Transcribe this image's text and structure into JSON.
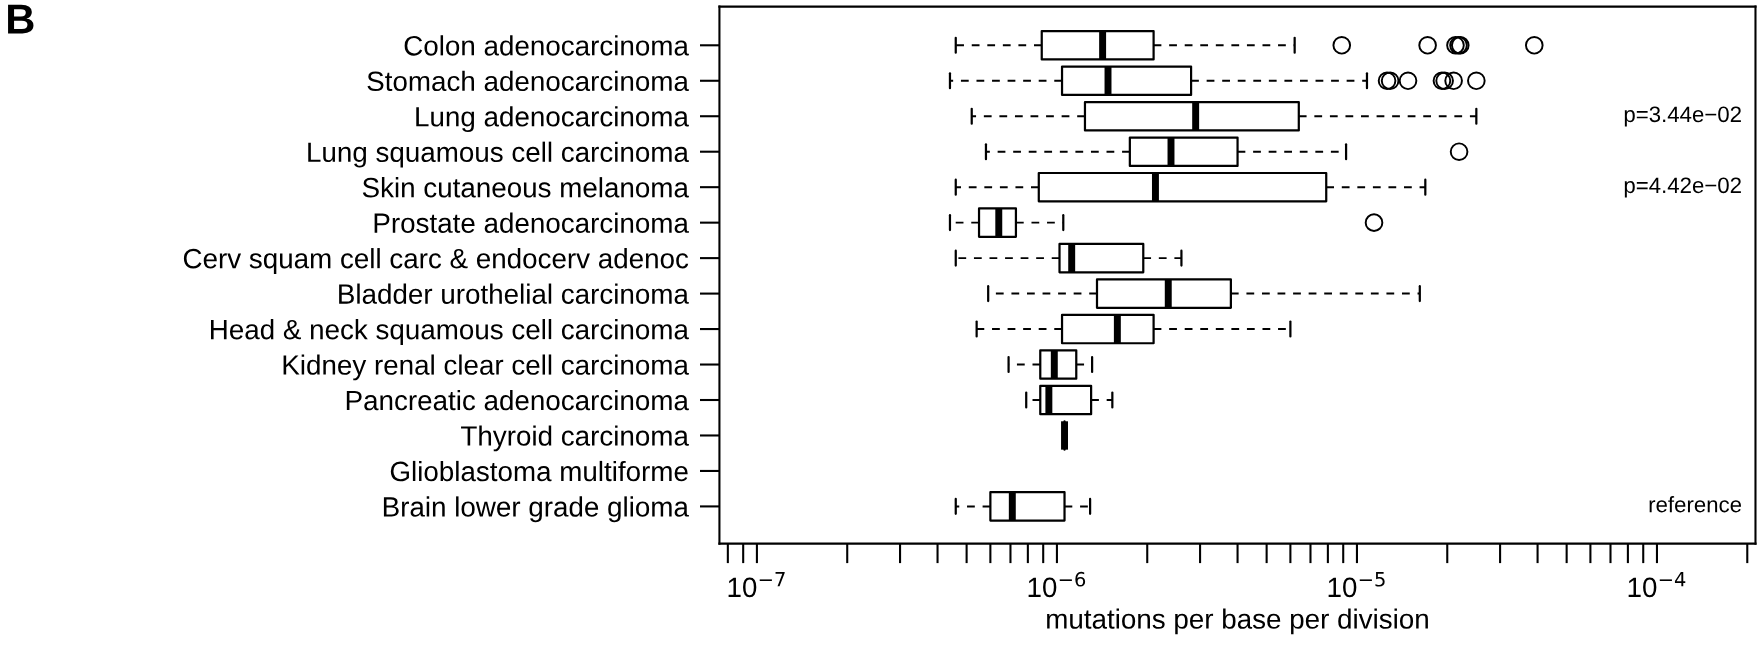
{
  "chart_data": {
    "type": "box",
    "orientation": "horizontal",
    "log": "x",
    "xlabel": "mutations per base per division",
    "categories": [
      "Colon adenocarcinoma",
      "Stomach adenocarcinoma",
      "Lung adenocarcinoma",
      "Lung squamous cell carcinoma",
      "Skin cutaneous melanoma",
      "Prostate adenocarcinoma",
      "Cerv squam cell carc & endocerv adenoc",
      "Bladder urothelial carcinoma",
      "Head & neck squamous cell carcinoma",
      "Kidney renal clear cell carcinoma",
      "Pancreatic adenocarcinoma",
      "Thyroid carcinoma",
      "Glioblastoma multiforme",
      "Brain lower grade glioma"
    ],
    "boxes": [
      {
        "low": 4.6e-07,
        "q1": 8.9e-07,
        "median": 1.42e-06,
        "q3": 2.1e-06,
        "high": 6.2e-06,
        "outliers": [
          8.9e-06,
          1.72e-05,
          2.13e-05,
          2.18e-05,
          2.21e-05,
          3.9e-05
        ]
      },
      {
        "low": 4.4e-07,
        "q1": 1.04e-06,
        "median": 1.48e-06,
        "q3": 2.8e-06,
        "high": 1.08e-05,
        "outliers": [
          1.26e-05,
          1.29e-05,
          1.48e-05,
          1.92e-05,
          1.96e-05,
          2.1e-05,
          2.5e-05
        ]
      },
      {
        "low": 5.2e-07,
        "q1": 1.24e-06,
        "median": 2.9e-06,
        "q3": 6.4e-06,
        "high": 2.5e-05
      },
      {
        "low": 5.8e-07,
        "q1": 1.75e-06,
        "median": 2.4e-06,
        "q3": 4e-06,
        "high": 9.2e-06,
        "outliers": [
          2.19e-05
        ]
      },
      {
        "low": 4.6e-07,
        "q1": 8.7e-07,
        "median": 2.13e-06,
        "q3": 7.9e-06,
        "high": 1.69e-05
      },
      {
        "low": 4.4e-07,
        "q1": 5.5e-07,
        "median": 6.4e-07,
        "q3": 7.3e-07,
        "high": 1.05e-06,
        "outliers": [
          1.14e-05
        ]
      },
      {
        "low": 4.6e-07,
        "q1": 1.02e-06,
        "median": 1.12e-06,
        "q3": 1.94e-06,
        "high": 2.6e-06
      },
      {
        "low": 5.9e-07,
        "q1": 1.36e-06,
        "median": 2.35e-06,
        "q3": 3.8e-06,
        "high": 1.62e-05
      },
      {
        "low": 5.4e-07,
        "q1": 1.04e-06,
        "median": 1.59e-06,
        "q3": 2.1e-06,
        "high": 6e-06
      },
      {
        "low": 6.9e-07,
        "q1": 8.8e-07,
        "median": 9.8e-07,
        "q3": 1.16e-06,
        "high": 1.31e-06
      },
      {
        "low": 7.9e-07,
        "q1": 8.8e-07,
        "median": 9.4e-07,
        "q3": 1.3e-06,
        "high": 1.53e-06
      },
      {
        "low": 1.06e-06,
        "q1": 1.06e-06,
        "median": 1.06e-06,
        "q3": 1.06e-06,
        "high": 1.06e-06
      },
      null,
      {
        "low": 4.6e-07,
        "q1": 6e-07,
        "median": 7.1e-07,
        "q3": 1.06e-06,
        "high": 1.29e-06
      }
    ],
    "xlim": [
      7.5e-08,
      0.000213
    ],
    "xticks": [
      {
        "value": 1e-07,
        "label": "10$^{−7}$"
      },
      {
        "value": 1e-06,
        "label": "10$^{−6}$"
      },
      {
        "value": 1e-05,
        "label": "10$^{−5}$"
      },
      {
        "value": 0.0001,
        "label": "10$^{−4}$"
      }
    ],
    "annotations": [
      "B",
      "p=3.44e−02",
      "p=4.42e−02",
      "reference"
    ]
  }
}
